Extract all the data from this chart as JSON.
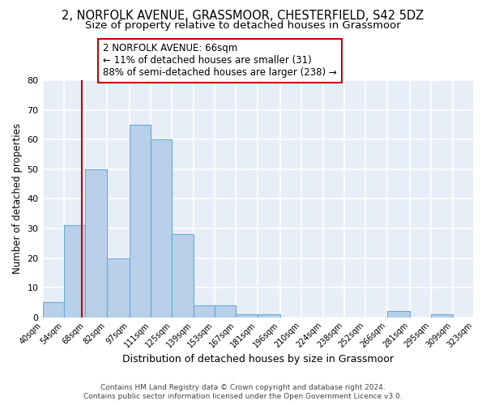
{
  "title": "2, NORFOLK AVENUE, GRASSMOOR, CHESTERFIELD, S42 5DZ",
  "subtitle": "Size of property relative to detached houses in Grassmoor",
  "xlabel": "Distribution of detached houses by size in Grassmoor",
  "ylabel": "Number of detached properties",
  "bar_edges": [
    40,
    54,
    68,
    82,
    97,
    111,
    125,
    139,
    153,
    167,
    181,
    196,
    210,
    224,
    238,
    252,
    266,
    281,
    295,
    309,
    323
  ],
  "bar_heights": [
    5,
    31,
    50,
    20,
    65,
    60,
    28,
    4,
    4,
    1,
    1,
    0,
    0,
    0,
    0,
    0,
    2,
    0,
    1,
    0
  ],
  "bar_color": "#b8d0ea",
  "bar_edge_color": "#6aaad4",
  "vline_x": 66,
  "vline_color": "#cc0000",
  "ylim": [
    0,
    80
  ],
  "yticks": [
    0,
    10,
    20,
    30,
    40,
    50,
    60,
    70,
    80
  ],
  "x_tick_labels": [
    "40sqm",
    "54sqm",
    "68sqm",
    "82sqm",
    "97sqm",
    "111sqm",
    "125sqm",
    "139sqm",
    "153sqm",
    "167sqm",
    "181sqm",
    "196sqm",
    "210sqm",
    "224sqm",
    "238sqm",
    "252sqm",
    "266sqm",
    "281sqm",
    "295sqm",
    "309sqm",
    "323sqm"
  ],
  "annotation_title": "2 NORFOLK AVENUE: 66sqm",
  "annotation_line1": "← 11% of detached houses are smaller (31)",
  "annotation_line2": "88% of semi-detached houses are larger (238) →",
  "annotation_box_color": "#ffffff",
  "annotation_box_edge_color": "#cc0000",
  "footer1": "Contains HM Land Registry data © Crown copyright and database right 2024.",
  "footer2": "Contains public sector information licensed under the Open Government Licence v3.0.",
  "fig_bg_color": "#ffffff",
  "plot_bg_color": "#e8eef8",
  "grid_color": "#ffffff",
  "title_fontsize": 10.5,
  "subtitle_fontsize": 9.5,
  "annotation_fontsize": 8.5
}
